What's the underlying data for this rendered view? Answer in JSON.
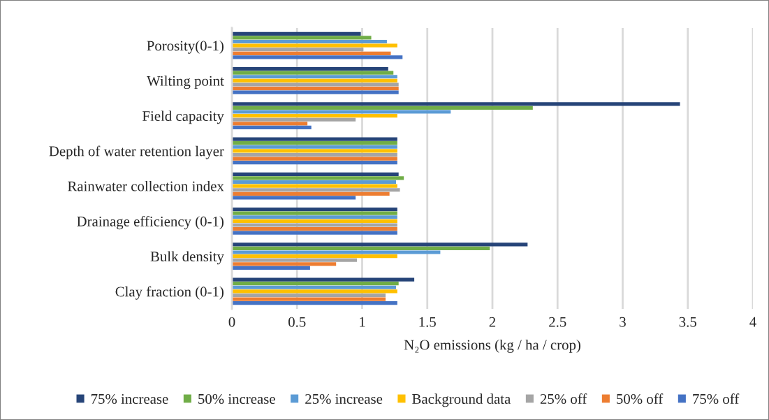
{
  "chart_data": {
    "type": "bar",
    "orientation": "horizontal",
    "xlabel": "N₂O emissions (kg / ha / crop)",
    "categories": [
      "Porosity(0-1)",
      "Wilting point",
      "Field capacity",
      "Depth of water retention layer",
      "Rainwater collection index",
      "Drainage efficiency (0-1)",
      "Bulk density",
      "Clay fraction (0-1)"
    ],
    "series": [
      {
        "name": "75% increase",
        "color": "#264478",
        "values": [
          0.99,
          1.2,
          3.44,
          1.27,
          1.28,
          1.27,
          2.27,
          1.4
        ]
      },
      {
        "name": "50% increase",
        "color": "#70ad47",
        "values": [
          1.07,
          1.24,
          2.31,
          1.27,
          1.32,
          1.27,
          1.98,
          1.28
        ]
      },
      {
        "name": "25% increase",
        "color": "#5b9bd5",
        "values": [
          1.19,
          1.27,
          1.68,
          1.27,
          1.26,
          1.27,
          1.6,
          1.26
        ]
      },
      {
        "name": "Background data",
        "color": "#ffc000",
        "values": [
          1.27,
          1.27,
          1.27,
          1.27,
          1.27,
          1.27,
          1.27,
          1.27
        ]
      },
      {
        "name": "25% off",
        "color": "#a5a5a5",
        "values": [
          1.01,
          1.28,
          0.95,
          1.27,
          1.29,
          1.27,
          0.96,
          1.18
        ]
      },
      {
        "name": "50% off",
        "color": "#ed7d31",
        "values": [
          1.22,
          1.28,
          0.58,
          1.27,
          1.21,
          1.27,
          0.8,
          1.18
        ]
      },
      {
        "name": "75% off",
        "color": "#4472c4",
        "values": [
          1.31,
          1.28,
          0.61,
          1.27,
          0.95,
          1.27,
          0.6,
          1.27
        ]
      }
    ],
    "xlim": [
      0,
      4
    ],
    "xticks": [
      0,
      0.5,
      1,
      1.5,
      2,
      2.5,
      3,
      3.5,
      4
    ],
    "grid": "x",
    "legend": "bottom"
  }
}
